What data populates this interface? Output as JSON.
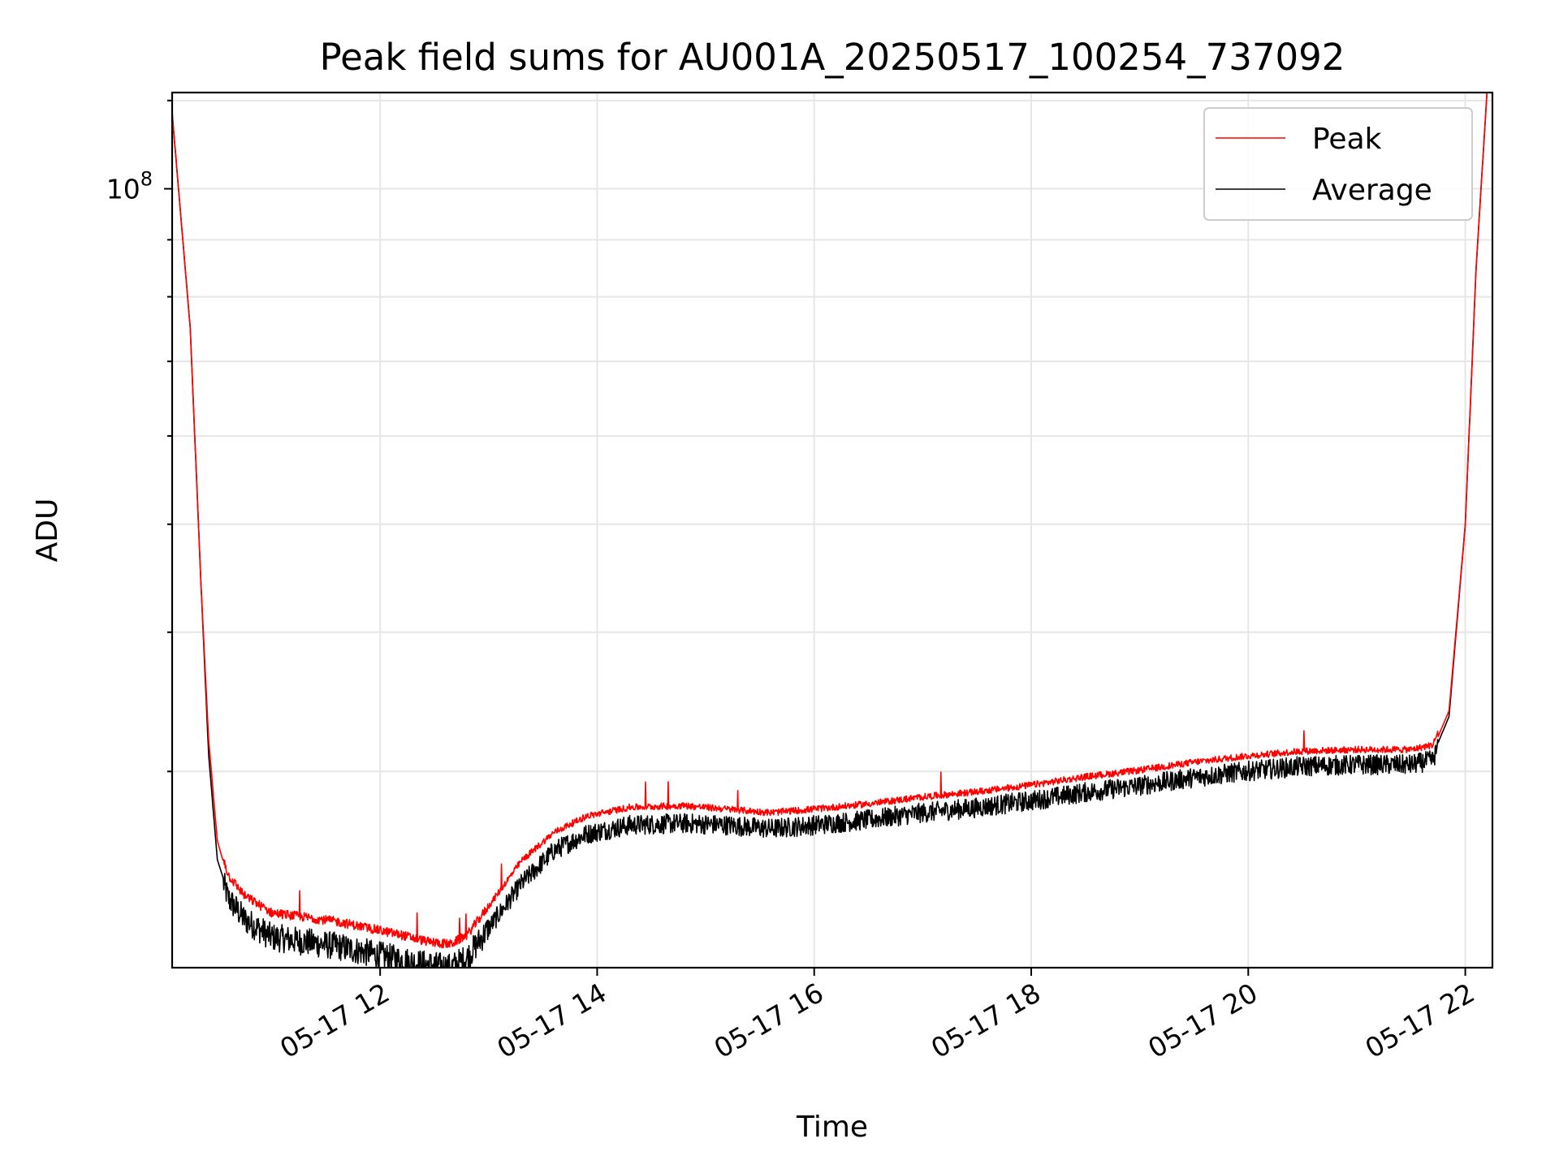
{
  "chart_data": {
    "type": "line",
    "title": "Peak field sums for AU001A_20250517_100254_737092",
    "xlabel": "Time",
    "ylabel": "ADU",
    "x_ticks": [
      "05-17 12",
      "05-17 14",
      "05-17 16",
      "05-17 18",
      "05-17 20",
      "05-17 22"
    ],
    "x_tick_hours": [
      12,
      14,
      16,
      18,
      20,
      22
    ],
    "xlim": [
      "2025-05-17 10:05",
      "2025-05-17 22:15"
    ],
    "y_scale": "log",
    "ylim": [
      20000000,
      122000000
    ],
    "y_tick_labels": [
      {
        "base": "10",
        "exp": "8",
        "value": 100000000
      }
    ],
    "y_gridlines": [
      30000000,
      40000000,
      50000000,
      60000000,
      70000000,
      80000000,
      90000000,
      100000000,
      120000000
    ],
    "grid": true,
    "legend_position": "upper right",
    "legend": [
      {
        "label": "Peak",
        "color": "#ff0000"
      },
      {
        "label": "Average",
        "color": "#000000"
      }
    ],
    "series": [
      {
        "name": "Peak",
        "color": "#ff0000",
        "x_hours": [
          10.08,
          10.25,
          10.35,
          10.42,
          10.5,
          10.6,
          10.75,
          11.0,
          11.3,
          11.6,
          11.9,
          12.2,
          12.45,
          12.65,
          12.8,
          13.0,
          13.3,
          13.6,
          13.9,
          14.3,
          14.8,
          15.2,
          15.6,
          16.0,
          16.5,
          17.0,
          17.5,
          18.0,
          18.5,
          19.0,
          19.5,
          20.0,
          20.5,
          21.0,
          21.5,
          21.7,
          21.85,
          22.0,
          22.1,
          22.2
        ],
        "y": [
          118000000,
          75000000,
          44000000,
          32000000,
          26000000,
          24000000,
          23000000,
          22200000,
          22000000,
          21800000,
          21500000,
          21200000,
          20900000,
          20800000,
          21200000,
          22500000,
          24700000,
          26200000,
          27100000,
          27600000,
          27700000,
          27500000,
          27300000,
          27500000,
          27800000,
          28200000,
          28500000,
          28900000,
          29400000,
          29800000,
          30300000,
          30700000,
          31000000,
          31100000,
          31100000,
          31400000,
          34000000,
          50000000,
          85000000,
          122000000
        ]
      },
      {
        "name": "Average",
        "color": "#000000",
        "x_hours": [
          10.08,
          10.25,
          10.35,
          10.42,
          10.5,
          10.6,
          10.75,
          11.0,
          11.3,
          11.6,
          11.9,
          12.2,
          12.45,
          12.65,
          12.8,
          13.0,
          13.3,
          13.6,
          13.9,
          14.3,
          14.8,
          15.2,
          15.6,
          16.0,
          16.5,
          17.0,
          17.5,
          18.0,
          18.5,
          19.0,
          19.5,
          20.0,
          20.5,
          21.0,
          21.5,
          21.7,
          21.85,
          22.0,
          22.1,
          22.2
        ],
        "y": [
          118000000,
          75000000,
          44000000,
          31000000,
          25000000,
          23300000,
          22300000,
          21500000,
          21300000,
          21100000,
          20800000,
          20500000,
          20300000,
          20200000,
          20600000,
          21900000,
          24000000,
          25700000,
          26600000,
          27100000,
          27200000,
          27100000,
          26900000,
          27100000,
          27400000,
          27800000,
          28100000,
          28500000,
          29000000,
          29400000,
          29900000,
          30300000,
          30600000,
          30700000,
          30700000,
          31000000,
          33600000,
          50000000,
          85000000,
          122000000
        ]
      }
    ]
  }
}
